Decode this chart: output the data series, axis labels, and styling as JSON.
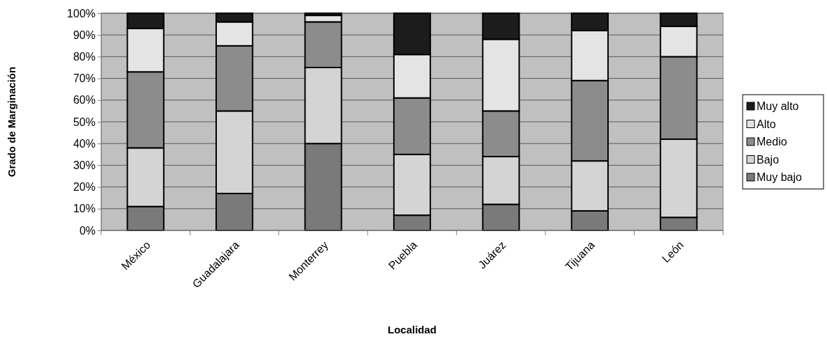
{
  "chart_data": {
    "type": "bar",
    "stacked": true,
    "xlabel": "Localidad",
    "ylabel": "Grado de Marginación",
    "categories": [
      "México",
      "Guadalajara",
      "Monterrey",
      "Puebla",
      "Juárez",
      "Tijuana",
      "León"
    ],
    "series": [
      {
        "name": "Muy bajo",
        "color": "#7a7a7a",
        "values": [
          11,
          17,
          40,
          7,
          12,
          9,
          6
        ]
      },
      {
        "name": "Bajo",
        "color": "#d4d4d4",
        "values": [
          27,
          38,
          35,
          28,
          22,
          23,
          36
        ]
      },
      {
        "name": "Medio",
        "color": "#8c8c8c",
        "values": [
          35,
          30,
          21,
          26,
          21,
          37,
          38
        ]
      },
      {
        "name": "Alto",
        "color": "#e4e4e4",
        "values": [
          20,
          11,
          3,
          20,
          33,
          23,
          14
        ]
      },
      {
        "name": "Muy alto",
        "color": "#1c1c1c",
        "values": [
          7,
          4,
          1,
          19,
          12,
          8,
          6
        ]
      }
    ],
    "ylim": [
      0,
      100
    ],
    "yticks": [
      {
        "value": 0,
        "label": "0%"
      },
      {
        "value": 10,
        "label": "10%"
      },
      {
        "value": 20,
        "label": "20%"
      },
      {
        "value": 30,
        "label": "30%"
      },
      {
        "value": 40,
        "label": "40%"
      },
      {
        "value": 50,
        "label": "50%"
      },
      {
        "value": 60,
        "label": "60%"
      },
      {
        "value": 70,
        "label": "70%"
      },
      {
        "value": 80,
        "label": "80%"
      },
      {
        "value": 90,
        "label": "90%"
      },
      {
        "value": 100,
        "label": "100%"
      }
    ],
    "grid": "y",
    "legend": "right"
  }
}
